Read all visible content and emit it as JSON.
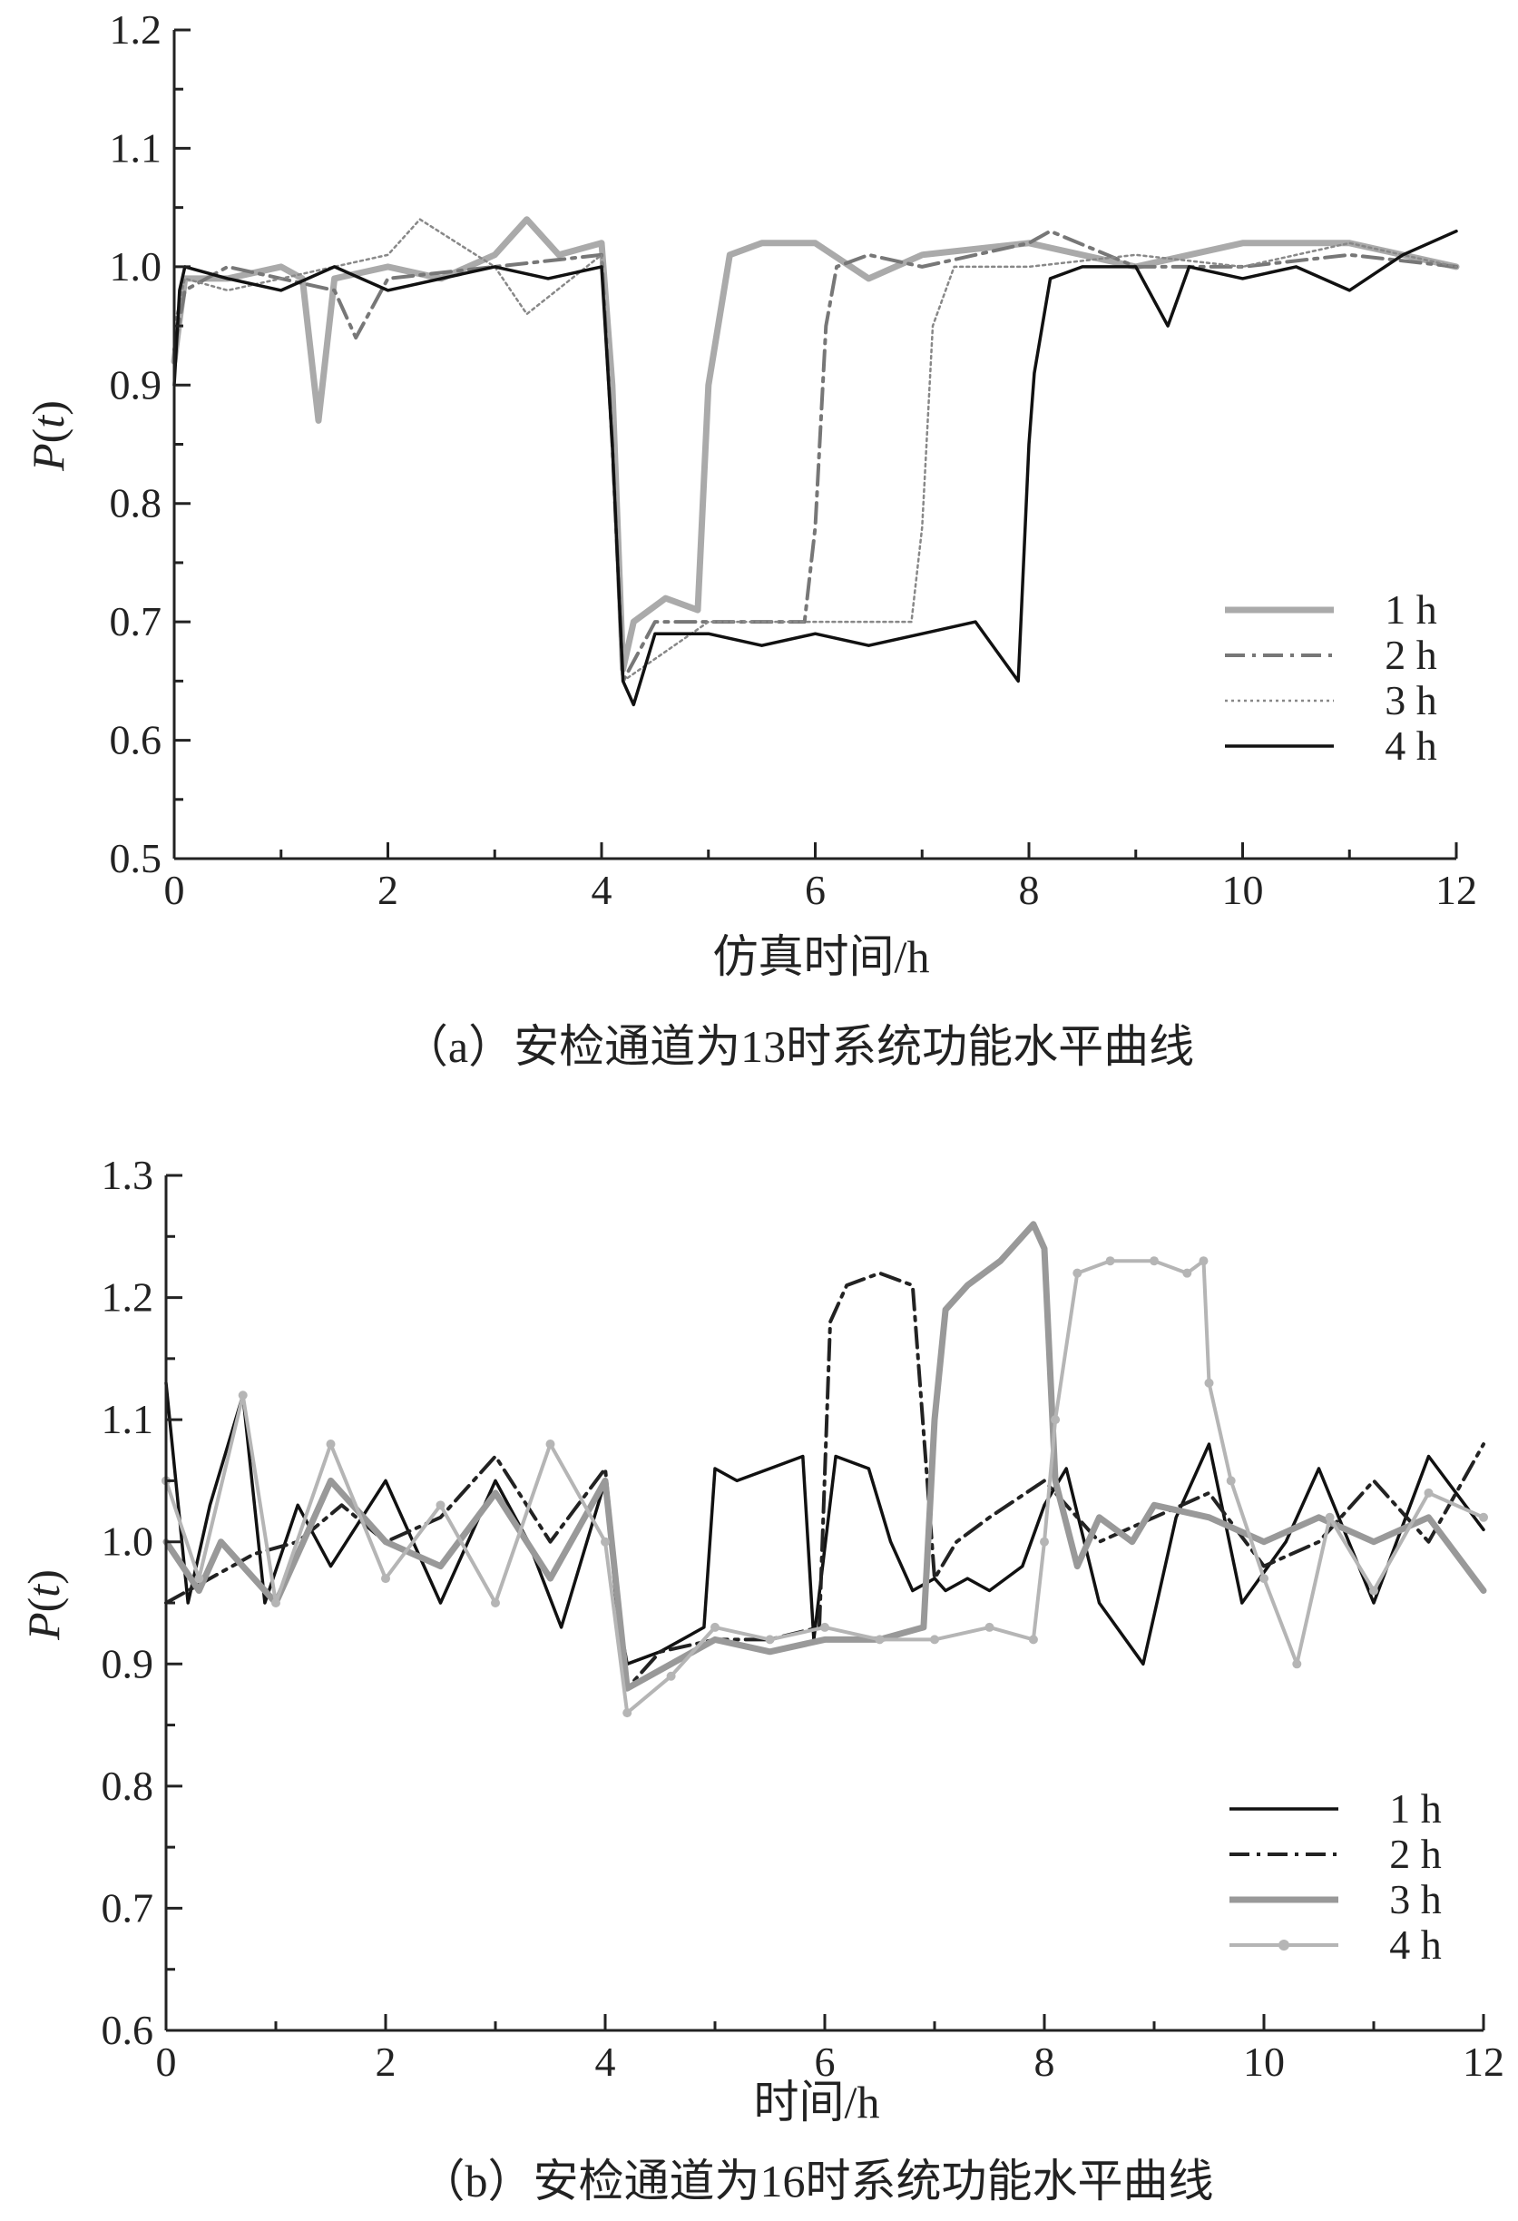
{
  "chart_data": [
    {
      "type": "line",
      "caption": "（a）安检通道为13时系统功能水平曲线",
      "xlabel": "仿真时间/h",
      "ylabel_main": "P",
      "ylabel_var": "t",
      "xlim": [
        0,
        12
      ],
      "ylim": [
        0.5,
        1.2
      ],
      "xticks": [
        0,
        2,
        4,
        6,
        8,
        10,
        12
      ],
      "yticks": [
        0.5,
        0.6,
        0.7,
        0.8,
        0.9,
        1.0,
        1.1,
        1.2
      ],
      "ytick_labels": [
        "0.5",
        "0.6",
        "0.7",
        "0.8",
        "0.9",
        "1.0",
        "1.1",
        "1.2"
      ],
      "legend": "right",
      "series": [
        {
          "name": "1 h",
          "color": "#aaaaaa",
          "style": "thick-solid",
          "x": [
            0,
            0.1,
            0.5,
            1.0,
            1.2,
            1.35,
            1.5,
            2.0,
            2.5,
            3.0,
            3.3,
            3.6,
            4.0,
            4.1,
            4.2,
            4.3,
            4.6,
            4.9,
            5.0,
            5.2,
            5.5,
            6.0,
            6.5,
            7.0,
            8.0,
            9.0,
            10.0,
            11.0,
            12.0
          ],
          "y": [
            0.92,
            0.99,
            0.99,
            1.0,
            0.99,
            0.87,
            0.99,
            1.0,
            0.99,
            1.01,
            1.04,
            1.01,
            1.02,
            0.9,
            0.66,
            0.7,
            0.72,
            0.71,
            0.9,
            1.01,
            1.02,
            1.02,
            0.99,
            1.01,
            1.02,
            1.0,
            1.02,
            1.02,
            1.0
          ]
        },
        {
          "name": "2 h",
          "color": "#777777",
          "style": "dash-dot",
          "x": [
            0,
            0.1,
            0.5,
            1.0,
            1.5,
            1.7,
            2.0,
            3.0,
            4.0,
            4.1,
            4.2,
            4.5,
            5.0,
            5.5,
            5.9,
            6.0,
            6.1,
            6.2,
            6.5,
            7.0,
            7.5,
            8.0,
            8.2,
            9.0,
            10.0,
            11.0,
            12.0
          ],
          "y": [
            0.93,
            0.98,
            1.0,
            0.99,
            0.98,
            0.94,
            0.99,
            1.0,
            1.01,
            0.85,
            0.65,
            0.7,
            0.7,
            0.7,
            0.7,
            0.78,
            0.95,
            1.0,
            1.01,
            1.0,
            1.01,
            1.02,
            1.03,
            1.0,
            1.0,
            1.01,
            1.0
          ]
        },
        {
          "name": "3 h",
          "color": "#888888",
          "style": "thin-dotted",
          "x": [
            0,
            0.1,
            0.5,
            1.0,
            2.0,
            2.3,
            3.0,
            3.3,
            4.0,
            4.1,
            4.2,
            5.0,
            6.0,
            6.9,
            7.0,
            7.1,
            7.3,
            8.0,
            9.0,
            10.0,
            11.0,
            12.0
          ],
          "y": [
            0.95,
            0.99,
            0.98,
            0.99,
            1.01,
            1.04,
            1.0,
            0.96,
            1.01,
            0.85,
            0.65,
            0.7,
            0.7,
            0.7,
            0.78,
            0.95,
            1.0,
            1.0,
            1.01,
            1.0,
            1.02,
            1.0
          ]
        },
        {
          "name": "4 h",
          "color": "#111111",
          "style": "solid",
          "x": [
            0,
            0.05,
            0.1,
            0.5,
            1.0,
            1.5,
            2.0,
            3.0,
            3.5,
            4.0,
            4.1,
            4.2,
            4.3,
            4.5,
            5.0,
            5.5,
            6.0,
            6.5,
            7.0,
            7.5,
            7.9,
            8.0,
            8.05,
            8.2,
            8.5,
            9.0,
            9.3,
            9.5,
            10.0,
            10.5,
            11.0,
            11.5,
            12.0
          ],
          "y": [
            0.9,
            0.98,
            1.0,
            0.99,
            0.98,
            1.0,
            0.98,
            1.0,
            0.99,
            1.0,
            0.85,
            0.65,
            0.63,
            0.69,
            0.69,
            0.68,
            0.69,
            0.68,
            0.69,
            0.7,
            0.65,
            0.85,
            0.91,
            0.99,
            1.0,
            1.0,
            0.95,
            1.0,
            0.99,
            1.0,
            0.98,
            1.01,
            1.03
          ]
        }
      ]
    },
    {
      "type": "line",
      "caption": "（b）安检通道为16时系统功能水平曲线",
      "xlabel": "时间/h",
      "ylabel_main": "P",
      "ylabel_var": "t",
      "xlim": [
        0,
        12
      ],
      "ylim": [
        0.6,
        1.3
      ],
      "xticks": [
        0,
        2,
        4,
        6,
        8,
        10,
        12
      ],
      "yticks": [
        0.6,
        0.7,
        0.8,
        0.9,
        1.0,
        1.1,
        1.2,
        1.3
      ],
      "ytick_labels": [
        "0.6",
        "0.7",
        "0.8",
        "0.9",
        "1.0",
        "1.1",
        "1.2",
        "1.3"
      ],
      "legend": "right",
      "series": [
        {
          "name": "1 h",
          "color": "#111111",
          "style": "solid",
          "x": [
            0,
            0.2,
            0.4,
            0.7,
            0.9,
            1.2,
            1.5,
            2.0,
            2.5,
            3.0,
            3.3,
            3.6,
            4.0,
            4.1,
            4.2,
            4.5,
            4.9,
            5.0,
            5.2,
            5.5,
            5.8,
            5.9,
            6.1,
            6.4,
            6.6,
            6.8,
            7.0,
            7.1,
            7.3,
            7.5,
            7.8,
            8.0,
            8.2,
            8.5,
            8.9,
            9.2,
            9.5,
            9.8,
            10.2,
            10.5,
            11.0,
            11.5,
            12.0
          ],
          "y": [
            1.13,
            0.95,
            1.03,
            1.12,
            0.95,
            1.03,
            0.98,
            1.05,
            0.95,
            1.05,
            1.0,
            0.93,
            1.05,
            0.95,
            0.9,
            0.91,
            0.93,
            1.06,
            1.05,
            1.06,
            1.07,
            0.92,
            1.07,
            1.06,
            1.0,
            0.96,
            0.97,
            0.96,
            0.97,
            0.96,
            0.98,
            1.03,
            1.06,
            0.95,
            0.9,
            1.02,
            1.08,
            0.95,
            1.0,
            1.06,
            0.95,
            1.07,
            1.01
          ]
        },
        {
          "name": "2 h",
          "color": "#222222",
          "style": "dash-dot",
          "x": [
            0,
            0.4,
            0.8,
            1.2,
            1.6,
            2.0,
            2.5,
            3.0,
            3.5,
            4.0,
            4.2,
            4.5,
            5.0,
            5.5,
            5.95,
            6.05,
            6.2,
            6.5,
            6.8,
            7.0,
            7.2,
            7.5,
            8.0,
            8.5,
            9.0,
            9.5,
            10.0,
            10.5,
            11.0,
            11.5,
            12.0
          ],
          "y": [
            0.95,
            0.97,
            0.99,
            1.0,
            1.03,
            1.0,
            1.02,
            1.07,
            1.0,
            1.06,
            0.88,
            0.91,
            0.92,
            0.92,
            0.93,
            1.18,
            1.21,
            1.22,
            1.21,
            0.97,
            1.0,
            1.02,
            1.05,
            1.0,
            1.02,
            1.04,
            0.98,
            1.0,
            1.05,
            1.0,
            1.08
          ]
        },
        {
          "name": "3 h",
          "color": "#999999",
          "style": "thick-solid",
          "x": [
            0,
            0.3,
            0.5,
            1.0,
            1.5,
            2.0,
            2.5,
            3.0,
            3.5,
            4.0,
            4.2,
            4.6,
            5.0,
            5.5,
            6.0,
            6.5,
            6.9,
            7.0,
            7.1,
            7.3,
            7.6,
            7.9,
            8.0,
            8.1,
            8.3,
            8.5,
            8.8,
            9.0,
            9.5,
            10.0,
            10.5,
            11.0,
            11.5,
            12.0
          ],
          "y": [
            1.0,
            0.96,
            1.0,
            0.95,
            1.05,
            1.0,
            0.98,
            1.04,
            0.97,
            1.05,
            0.88,
            0.9,
            0.92,
            0.91,
            0.92,
            0.92,
            0.93,
            1.1,
            1.19,
            1.21,
            1.23,
            1.26,
            1.24,
            1.05,
            0.98,
            1.02,
            1.0,
            1.03,
            1.02,
            1.0,
            1.02,
            1.0,
            1.02,
            0.96
          ]
        },
        {
          "name": "4 h",
          "color": "#b5b5b5",
          "style": "solid-marker",
          "x": [
            0,
            0.3,
            0.7,
            1.0,
            1.5,
            2.0,
            2.5,
            3.0,
            3.5,
            4.0,
            4.2,
            4.6,
            5.0,
            5.5,
            6.0,
            6.5,
            7.0,
            7.5,
            7.9,
            8.0,
            8.1,
            8.3,
            8.6,
            9.0,
            9.3,
            9.45,
            9.5,
            9.7,
            10.0,
            10.3,
            10.6,
            11.0,
            11.5,
            12.0
          ],
          "y": [
            1.05,
            0.97,
            1.12,
            0.95,
            1.08,
            0.97,
            1.03,
            0.95,
            1.08,
            1.0,
            0.86,
            0.89,
            0.93,
            0.92,
            0.93,
            0.92,
            0.92,
            0.93,
            0.92,
            1.0,
            1.1,
            1.22,
            1.23,
            1.23,
            1.22,
            1.23,
            1.13,
            1.05,
            0.97,
            0.9,
            1.02,
            0.96,
            1.04,
            1.02
          ]
        }
      ]
    }
  ]
}
